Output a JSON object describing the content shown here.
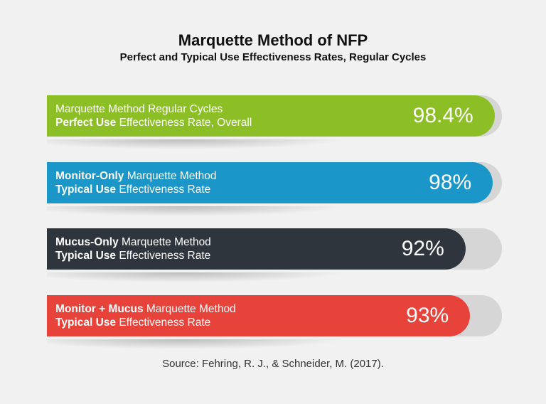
{
  "title": "Marquette Method of NFP",
  "subtitle": "Perfect and Typical Use Effectiveness Rates, Regular Cycles",
  "source": "Source: Fehring, R. J., & Schneider, M. (2017).",
  "colors": {
    "green": "#8cbf26",
    "blue": "#1a96c8",
    "dark": "#2f353d",
    "red": "#e8433b",
    "track": "#d6d6d6"
  },
  "chart_data": {
    "type": "bar",
    "orientation": "horizontal",
    "categories": [
      "Marquette Method Regular Cycles Perfect Use Effectiveness Rate, Overall",
      "Monitor-Only Marquette Method Typical Use Effectiveness Rate",
      "Mucus-Only Marquette Method Typical Use Effectiveness Rate",
      "Monitor + Mucus Marquette Method Typical Use Effectiveness Rate"
    ],
    "values": [
      98.4,
      98,
      92,
      93
    ],
    "value_labels": [
      "98.4%",
      "98%",
      "92%",
      "93%"
    ],
    "unit": "%",
    "xlim": [
      0,
      100
    ],
    "bars": [
      {
        "line1_bold": "",
        "line1_rest": "Marquette Method Regular Cycles",
        "line2_bold": "Perfect Use",
        "line2_rest": " Effectiveness Rate, Overall",
        "color": "#8cbf26"
      },
      {
        "line1_bold": "Monitor-Only",
        "line1_rest": " Marquette Method",
        "line2_bold": "Typical Use",
        "line2_rest": " Effectiveness Rate",
        "color": "#1a96c8"
      },
      {
        "line1_bold": "Mucus-Only",
        "line1_rest": " Marquette Method",
        "line2_bold": "Typical Use",
        "line2_rest": " Effectiveness Rate",
        "color": "#2f353d"
      },
      {
        "line1_bold": "Monitor + Mucus",
        "line1_rest": " Marquette Method",
        "line2_bold": "Typical Use",
        "line2_rest": " Effectiveness Rate",
        "color": "#e8433b"
      }
    ]
  }
}
